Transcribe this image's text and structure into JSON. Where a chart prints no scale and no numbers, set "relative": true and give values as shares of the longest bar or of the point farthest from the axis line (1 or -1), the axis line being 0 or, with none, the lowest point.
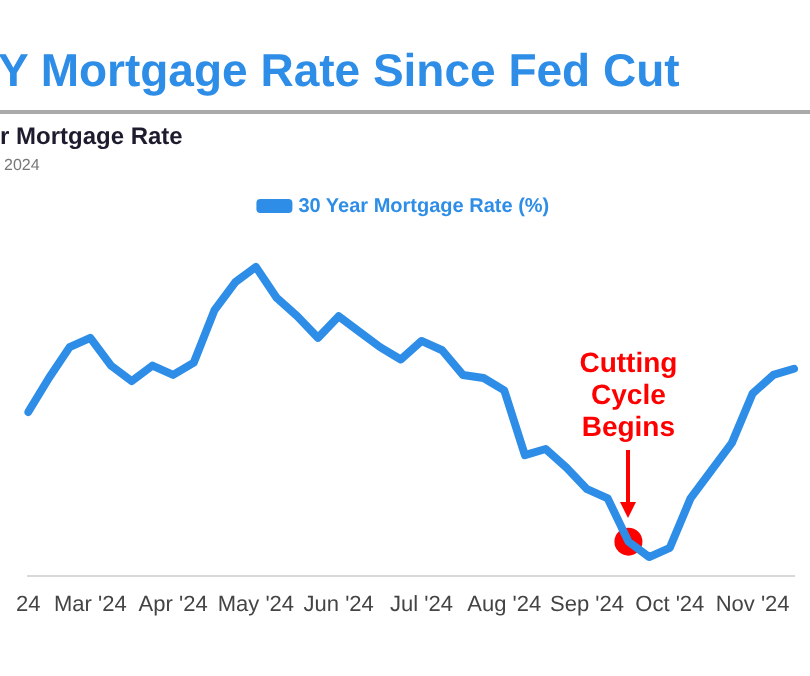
{
  "chart_data": {
    "type": "line",
    "title": "Y Mortgage Rate Since Fed Cut",
    "subtitle": "r Mortgage Rate",
    "annotations": [
      "2024",
      "Cutting Cycle Begins"
    ],
    "relative": true,
    "legend": "top",
    "grid": false,
    "marker": "none",
    "line_style": "solid",
    "categories": [
      "24",
      null,
      null,
      "Mar '24",
      null,
      null,
      null,
      "Apr '24",
      null,
      null,
      null,
      "May '24",
      null,
      null,
      null,
      "Jun '24",
      null,
      null,
      null,
      "Jul '24",
      null,
      null,
      null,
      "Aug '24",
      null,
      null,
      null,
      "Sep '24",
      null,
      null,
      null,
      "Oct '24",
      null,
      null,
      null,
      "Nov '24",
      null,
      null
    ],
    "series": [
      {
        "name": "30 Year Mortgage Rate (%)",
        "color": "#2e8de6",
        "values": [
          0.53,
          0.64,
          0.74,
          0.77,
          0.68,
          0.63,
          0.68,
          0.65,
          0.69,
          0.86,
          0.95,
          1,
          0.9,
          0.84,
          0.77,
          0.84,
          0.79,
          0.74,
          0.7,
          0.76,
          0.73,
          0.65,
          0.64,
          0.6,
          0.39,
          0.41,
          0.35,
          0.28,
          0.25,
          0.11,
          0.06,
          0.09,
          0.25,
          0.34,
          0.43,
          0.59,
          0.65,
          0.67
        ]
      },
      {
        "type": "scatter",
        "marker": "circle",
        "color": "#ff0000",
        "values": [
          null,
          null,
          null,
          null,
          null,
          null,
          null,
          null,
          null,
          null,
          null,
          null,
          null,
          null,
          null,
          null,
          null,
          null,
          null,
          null,
          null,
          null,
          null,
          null,
          null,
          null,
          null,
          null,
          null,
          0.11,
          null,
          null,
          null,
          null,
          null,
          null,
          null,
          null
        ]
      }
    ]
  }
}
